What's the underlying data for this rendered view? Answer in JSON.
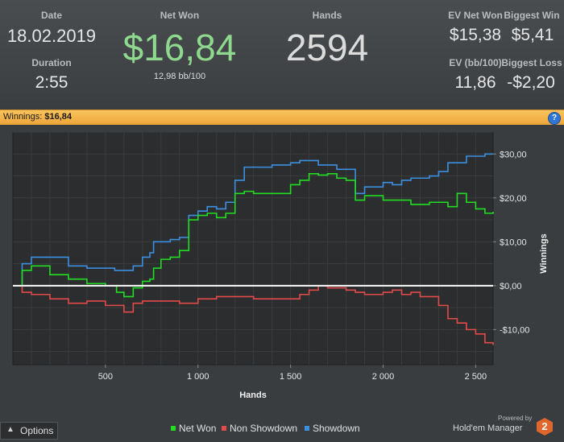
{
  "stats": {
    "date_label": "Date",
    "date_value": "18.02.2019",
    "duration_label": "Duration",
    "duration_value": "2:55",
    "net_won_label": "Net Won",
    "net_won_value": "$16,84",
    "bb_per_100": "12,98 bb/100",
    "hands_label": "Hands",
    "hands_value": "2594",
    "ev_net_won_label": "EV Net Won",
    "ev_net_won_value": "$15,38",
    "biggest_win_label": "Biggest Win",
    "biggest_win_value": "$5,41",
    "ev_bb_label": "EV (bb/100)",
    "ev_bb_value": "11,86",
    "biggest_loss_label": "Biggest Loss",
    "biggest_loss_value": "-$2,20"
  },
  "banner": {
    "prefix": "Winnings:",
    "amount": "$16,84",
    "help_glyph": "?"
  },
  "colors": {
    "net_won": "#22dd22",
    "non_showdown": "#e34a4a",
    "showdown": "#3d8fe0",
    "accent_banner": "#f2b144",
    "net_won_text": "#8fd98f"
  },
  "options": {
    "label": "Options",
    "icon": "chevron-up-icon"
  },
  "brand": {
    "powered_by": "Powered by",
    "name": "Hold'em Manager",
    "logo_glyph": "2"
  },
  "chart_data": {
    "type": "line",
    "xlabel": "Hands",
    "ylabel": "Winnings",
    "xlim": [
      0,
      2594
    ],
    "ylim": [
      -18,
      35
    ],
    "x_ticks": [
      500,
      1000,
      1500,
      2000,
      2500
    ],
    "x_tick_labels": [
      "500",
      "1 000",
      "1 500",
      "2 000",
      "2 500"
    ],
    "y_ticks": [
      30,
      20,
      10,
      0,
      -10
    ],
    "y_tick_labels": [
      "$30,00",
      "$20,00",
      "$10,00",
      "$0,00",
      "-$10,00"
    ],
    "grid": true,
    "legend_position": "bottom",
    "series": [
      {
        "name": "Net Won",
        "color": "#22dd22",
        "x": [
          0,
          50,
          100,
          200,
          300,
          400,
          500,
          560,
          600,
          650,
          700,
          740,
          760,
          800,
          850,
          900,
          950,
          1000,
          1050,
          1100,
          1150,
          1200,
          1250,
          1300,
          1400,
          1500,
          1550,
          1600,
          1650,
          1700,
          1750,
          1800,
          1850,
          1900,
          2000,
          2100,
          2150,
          2200,
          2250,
          2300,
          2350,
          2400,
          2450,
          2500,
          2550,
          2594
        ],
        "y": [
          0,
          3.5,
          4.5,
          2.5,
          1.5,
          0.5,
          0,
          -1.5,
          -2.5,
          -0.5,
          1,
          1.5,
          4,
          6,
          6.5,
          8,
          15,
          16,
          16.5,
          15.5,
          16.5,
          21,
          21.5,
          21,
          21,
          23,
          24,
          25.5,
          25.2,
          25.5,
          24.5,
          24,
          19.5,
          20.5,
          19.5,
          19.5,
          18.5,
          18.5,
          19,
          19,
          18,
          21,
          19,
          17.5,
          16.5,
          16.84
        ]
      },
      {
        "name": "Non Showdown",
        "color": "#e34a4a",
        "x": [
          0,
          50,
          100,
          200,
          300,
          400,
          500,
          600,
          650,
          700,
          800,
          900,
          1000,
          1100,
          1200,
          1300,
          1400,
          1500,
          1550,
          1600,
          1650,
          1700,
          1750,
          1800,
          1850,
          1900,
          2000,
          2050,
          2100,
          2150,
          2200,
          2250,
          2300,
          2350,
          2400,
          2450,
          2500,
          2550,
          2594
        ],
        "y": [
          0,
          -1.5,
          -2,
          -3,
          -4,
          -3.5,
          -4.5,
          -6,
          -4,
          -3.5,
          -3.5,
          -4,
          -3,
          -2.5,
          -2.5,
          -3,
          -3,
          -3,
          -2,
          -1,
          0,
          -0.5,
          -0.5,
          -1,
          -1.5,
          -2,
          -1.5,
          -1,
          -2,
          -1.5,
          -2.5,
          -2.5,
          -4.5,
          -7.5,
          -8.5,
          -10,
          -11,
          -13,
          -13.5
        ]
      },
      {
        "name": "Showdown",
        "color": "#3d8fe0",
        "x": [
          0,
          50,
          100,
          200,
          300,
          400,
          500,
          550,
          600,
          650,
          700,
          740,
          760,
          850,
          900,
          950,
          1000,
          1050,
          1100,
          1150,
          1200,
          1250,
          1300,
          1400,
          1500,
          1550,
          1600,
          1650,
          1700,
          1750,
          1800,
          1850,
          1900,
          2000,
          2050,
          2100,
          2150,
          2200,
          2250,
          2300,
          2350,
          2400,
          2450,
          2500,
          2550,
          2594
        ],
        "y": [
          0,
          5,
          6.5,
          6.5,
          4.5,
          4,
          4,
          3.5,
          3.5,
          4.5,
          6.5,
          7.5,
          10,
          10.5,
          11,
          16,
          17,
          18,
          17.5,
          19,
          24,
          27,
          27,
          27.5,
          28,
          28.5,
          28.5,
          27.5,
          27.5,
          26.5,
          26.5,
          21,
          22.5,
          23.5,
          23,
          24,
          24.5,
          24.5,
          25,
          26,
          28,
          28,
          29.5,
          29.5,
          30,
          30
        ]
      }
    ]
  }
}
